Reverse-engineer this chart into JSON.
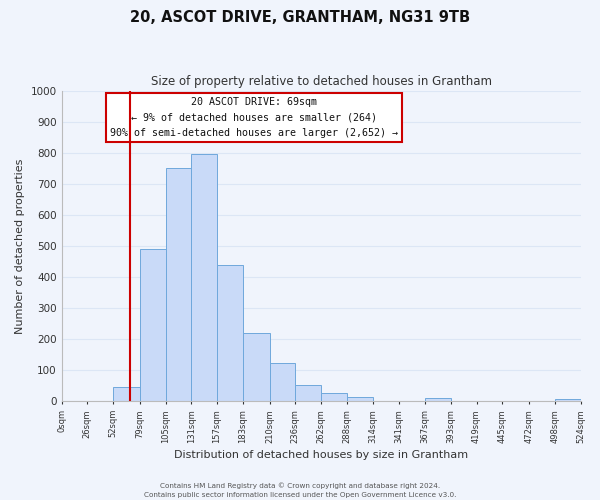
{
  "title": "20, ASCOT DRIVE, GRANTHAM, NG31 9TB",
  "subtitle": "Size of property relative to detached houses in Grantham",
  "xlabel": "Distribution of detached houses by size in Grantham",
  "ylabel": "Number of detached properties",
  "bar_edges": [
    0,
    26,
    52,
    79,
    105,
    131,
    157,
    183,
    210,
    236,
    262,
    288,
    314,
    341,
    367,
    393,
    419,
    445,
    472,
    498,
    524
  ],
  "bar_heights": [
    0,
    0,
    45,
    490,
    750,
    795,
    440,
    220,
    125,
    52,
    28,
    15,
    0,
    0,
    10,
    0,
    0,
    0,
    0,
    8,
    0
  ],
  "bar_color": "#c9daf8",
  "bar_edge_color": "#6fa8dc",
  "property_line_x": 69,
  "property_line_color": "#cc0000",
  "ylim": [
    0,
    1000
  ],
  "yticks": [
    0,
    100,
    200,
    300,
    400,
    500,
    600,
    700,
    800,
    900,
    1000
  ],
  "x_tick_labels": [
    "0sqm",
    "26sqm",
    "52sqm",
    "79sqm",
    "105sqm",
    "131sqm",
    "157sqm",
    "183sqm",
    "210sqm",
    "236sqm",
    "262sqm",
    "288sqm",
    "314sqm",
    "341sqm",
    "367sqm",
    "393sqm",
    "419sqm",
    "445sqm",
    "472sqm",
    "498sqm",
    "524sqm"
  ],
  "annotation_title": "20 ASCOT DRIVE: 69sqm",
  "annotation_line1": "← 9% of detached houses are smaller (264)",
  "annotation_line2": "90% of semi-detached houses are larger (2,652) →",
  "annotation_box_color": "#ffffff",
  "annotation_box_edge_color": "#cc0000",
  "footer_line1": "Contains HM Land Registry data © Crown copyright and database right 2024.",
  "footer_line2": "Contains public sector information licensed under the Open Government Licence v3.0.",
  "grid_color": "#dce6f5",
  "background_color": "#f0f4fc"
}
